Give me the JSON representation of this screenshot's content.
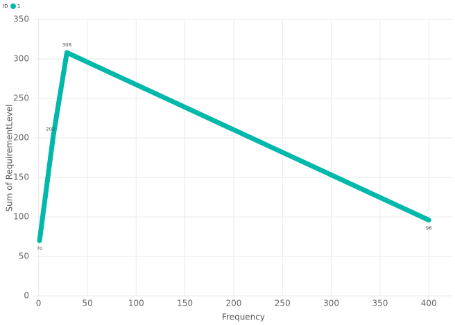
{
  "chart_data": {
    "type": "line",
    "legend_title": "ID",
    "x_label": "Frequency",
    "y_label": "Sum of RequirementLevel",
    "x": [
      1,
      15,
      29,
      400
    ],
    "series": [
      {
        "name": "1",
        "color": "#01b8aa",
        "values": [
          70,
          202,
          308,
          96
        ],
        "value_labels": [
          "70",
          "202",
          "308",
          "96"
        ]
      }
    ],
    "xlim": [
      -4,
      424
    ],
    "xticks": [
      0,
      50,
      100,
      150,
      200,
      250,
      300,
      350,
      400
    ],
    "ylim": [
      0,
      350
    ],
    "yticks": [
      0,
      50,
      100,
      150,
      200,
      250,
      300,
      350
    ],
    "grid": true
  }
}
